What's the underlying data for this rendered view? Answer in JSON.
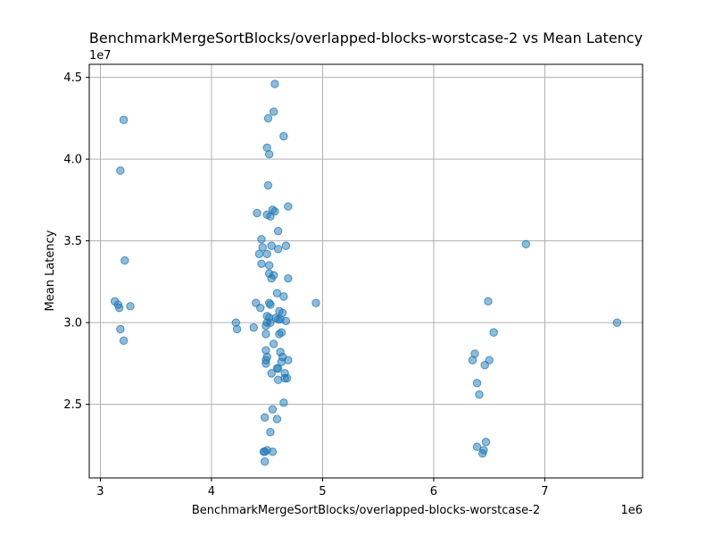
{
  "chart_data": {
    "type": "scatter",
    "title": "BenchmarkMergeSortBlocks/overlapped-blocks-worstcase-2 vs Mean Latency",
    "xlabel": "BenchmarkMergeSortBlocks/overlapped-blocks-worstcase-2",
    "ylabel": "Mean Latency",
    "x_offset_label": "1e6",
    "y_offset_label": "1e7",
    "xlim": [
      2.9,
      7.88
    ],
    "ylim": [
      2.05,
      4.58
    ],
    "x_ticks": [
      3,
      4,
      5,
      6,
      7
    ],
    "y_ticks": [
      2.5,
      3.0,
      3.5,
      4.0,
      4.5
    ],
    "x_tick_labels": [
      "3",
      "4",
      "5",
      "6",
      "7"
    ],
    "y_tick_labels": [
      "2.5",
      "3.0",
      "3.5",
      "4.0",
      "4.5"
    ],
    "grid": true,
    "color": "#1f77b4",
    "points": [
      [
        3.13,
        3.13
      ],
      [
        3.16,
        3.11
      ],
      [
        3.17,
        3.09
      ],
      [
        3.18,
        3.93
      ],
      [
        3.18,
        2.96
      ],
      [
        3.21,
        4.24
      ],
      [
        3.22,
        3.38
      ],
      [
        3.21,
        2.89
      ],
      [
        3.27,
        3.1
      ],
      [
        4.22,
        3.0
      ],
      [
        4.23,
        2.96
      ],
      [
        4.38,
        2.97
      ],
      [
        4.4,
        3.12
      ],
      [
        4.41,
        3.67
      ],
      [
        4.43,
        3.42
      ],
      [
        4.44,
        3.09
      ],
      [
        4.45,
        3.51
      ],
      [
        4.45,
        3.36
      ],
      [
        4.46,
        3.46
      ],
      [
        4.47,
        2.21
      ],
      [
        4.48,
        2.21
      ],
      [
        4.48,
        2.15
      ],
      [
        4.48,
        2.42
      ],
      [
        4.49,
        2.93
      ],
      [
        4.49,
        2.98
      ],
      [
        4.49,
        2.83
      ],
      [
        4.49,
        2.77
      ],
      [
        4.49,
        2.75
      ],
      [
        4.5,
        3.04
      ],
      [
        4.5,
        3.0
      ],
      [
        4.5,
        2.79
      ],
      [
        4.5,
        2.22
      ],
      [
        4.5,
        3.66
      ],
      [
        4.5,
        3.42
      ],
      [
        4.5,
        4.07
      ],
      [
        4.51,
        4.25
      ],
      [
        4.51,
        3.84
      ],
      [
        4.52,
        4.03
      ],
      [
        4.52,
        3.3
      ],
      [
        4.52,
        3.35
      ],
      [
        4.52,
        3.12
      ],
      [
        4.52,
        3.03
      ],
      [
        4.53,
        3.0
      ],
      [
        4.53,
        3.65
      ],
      [
        4.53,
        3.11
      ],
      [
        4.53,
        2.33
      ],
      [
        4.54,
        3.47
      ],
      [
        4.54,
        2.69
      ],
      [
        4.54,
        3.27
      ],
      [
        4.55,
        2.21
      ],
      [
        4.55,
        2.47
      ],
      [
        4.55,
        3.69
      ],
      [
        4.56,
        3.29
      ],
      [
        4.56,
        2.87
      ],
      [
        4.56,
        4.29
      ],
      [
        4.57,
        4.46
      ],
      [
        4.57,
        3.68
      ],
      [
        4.58,
        3.03
      ],
      [
        4.59,
        2.72
      ],
      [
        4.59,
        3.18
      ],
      [
        4.59,
        2.41
      ],
      [
        4.6,
        3.45
      ],
      [
        4.6,
        3.56
      ],
      [
        4.6,
        2.72
      ],
      [
        4.6,
        3.02
      ],
      [
        4.6,
        2.65
      ],
      [
        4.61,
        3.07
      ],
      [
        4.61,
        2.93
      ],
      [
        4.62,
        2.82
      ],
      [
        4.62,
        3.02
      ],
      [
        4.63,
        2.94
      ],
      [
        4.63,
        2.76
      ],
      [
        4.64,
        3.06
      ],
      [
        4.64,
        2.79
      ],
      [
        4.65,
        3.16
      ],
      [
        4.65,
        4.14
      ],
      [
        4.65,
        2.51
      ],
      [
        4.66,
        2.69
      ],
      [
        4.66,
        2.66
      ],
      [
        4.67,
        3.47
      ],
      [
        4.67,
        3.01
      ],
      [
        4.68,
        2.66
      ],
      [
        4.69,
        2.77
      ],
      [
        4.69,
        3.71
      ],
      [
        4.69,
        3.27
      ],
      [
        4.94,
        3.12
      ],
      [
        6.35,
        2.77
      ],
      [
        6.37,
        2.81
      ],
      [
        6.39,
        2.63
      ],
      [
        6.39,
        2.24
      ],
      [
        6.41,
        2.56
      ],
      [
        6.44,
        2.2
      ],
      [
        6.45,
        2.22
      ],
      [
        6.46,
        2.74
      ],
      [
        6.47,
        2.27
      ],
      [
        6.49,
        3.13
      ],
      [
        6.5,
        2.77
      ],
      [
        6.54,
        2.94
      ],
      [
        6.83,
        3.48
      ],
      [
        7.65,
        3.0
      ]
    ]
  }
}
